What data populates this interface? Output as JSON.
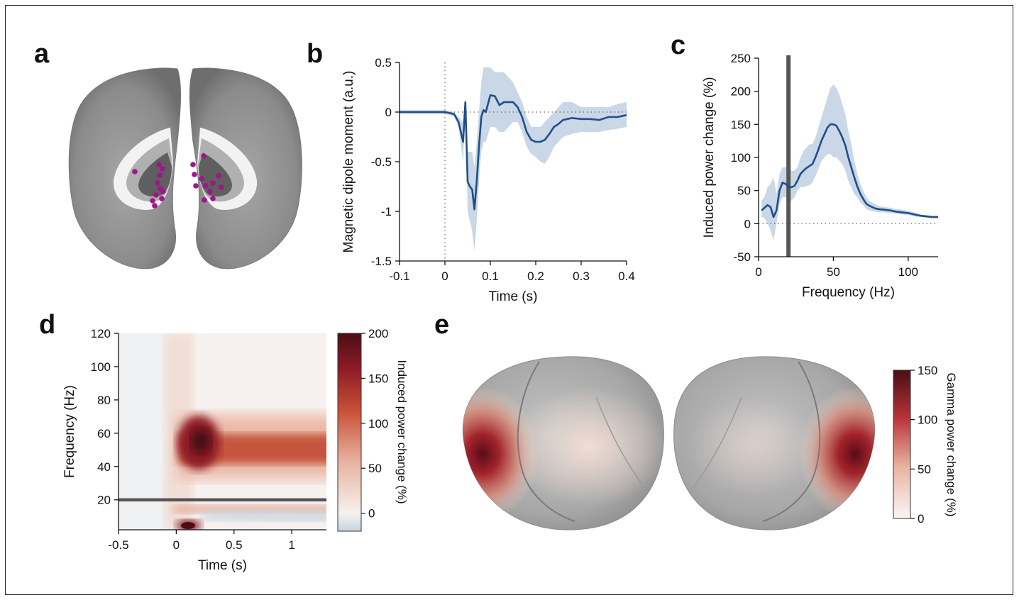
{
  "panels": {
    "a": {
      "label": "a"
    },
    "b": {
      "label": "b"
    },
    "c": {
      "label": "c"
    },
    "d": {
      "label": "d"
    },
    "e": {
      "label": "e"
    }
  },
  "colors": {
    "line": "#1f4e8a",
    "band": "#c9d7e6",
    "marker": "#555555",
    "spot": "#a0148c",
    "heat_low": "#c6d4df",
    "heat_zero": "#f6f1ee",
    "heat_high": "#4a0e14"
  },
  "chart_data": [
    {
      "panel": "b",
      "type": "line",
      "xlabel": "Time (s)",
      "ylabel": "Magnetic dipole moment (a.u.)",
      "xlim": [
        -0.1,
        0.4
      ],
      "ylim": [
        -1.5,
        0.5
      ],
      "xticks": [
        "-0.1",
        "0",
        "0.1",
        "0.2",
        "0.3",
        "0.4"
      ],
      "yticks": [
        "0.5",
        "0",
        "-0.5",
        "-1",
        "-1.5"
      ],
      "reference_lines": {
        "x": 0,
        "y": 0
      },
      "series": [
        {
          "x": [
            -0.1,
            -0.08,
            -0.06,
            -0.04,
            -0.02,
            0,
            0.02,
            0.03,
            0.04,
            0.045,
            0.05,
            0.055,
            0.06,
            0.065,
            0.07,
            0.075,
            0.08,
            0.085,
            0.09,
            0.1,
            0.11,
            0.12,
            0.13,
            0.14,
            0.15,
            0.16,
            0.17,
            0.18,
            0.19,
            0.2,
            0.21,
            0.22,
            0.23,
            0.24,
            0.25,
            0.26,
            0.28,
            0.3,
            0.32,
            0.34,
            0.36,
            0.38,
            0.4
          ],
          "y": [
            0.0,
            0.0,
            0.0,
            0.0,
            0.0,
            0.0,
            -0.02,
            -0.1,
            -0.3,
            0.1,
            -0.7,
            -0.75,
            -0.78,
            -0.98,
            -0.7,
            -0.35,
            -0.05,
            0.02,
            0.0,
            0.17,
            0.16,
            0.07,
            0.1,
            0.1,
            0.1,
            0.05,
            -0.05,
            -0.2,
            -0.28,
            -0.3,
            -0.3,
            -0.28,
            -0.22,
            -0.15,
            -0.12,
            -0.08,
            -0.06,
            -0.07,
            -0.07,
            -0.08,
            -0.05,
            -0.05,
            -0.03
          ],
          "upper": [
            0.02,
            0.02,
            0.02,
            0.02,
            0.02,
            0.02,
            0.0,
            -0.05,
            -0.1,
            0.15,
            -0.4,
            -0.4,
            -0.4,
            -0.55,
            -0.3,
            0.0,
            0.3,
            0.45,
            0.45,
            0.45,
            0.4,
            0.4,
            0.4,
            0.35,
            0.3,
            0.2,
            0.1,
            -0.05,
            -0.15,
            -0.15,
            -0.15,
            -0.1,
            -0.05,
            0.0,
            0.05,
            0.1,
            0.1,
            0.05,
            0.05,
            0.05,
            0.05,
            0.08,
            0.1
          ],
          "lower": [
            -0.02,
            -0.02,
            -0.02,
            -0.02,
            -0.02,
            -0.02,
            -0.04,
            -0.15,
            -0.5,
            0.05,
            -1.0,
            -1.1,
            -1.2,
            -1.4,
            -1.1,
            -0.7,
            -0.4,
            -0.3,
            -0.3,
            -0.15,
            -0.15,
            -0.2,
            -0.2,
            -0.15,
            -0.1,
            -0.1,
            -0.2,
            -0.35,
            -0.42,
            -0.45,
            -0.5,
            -0.52,
            -0.45,
            -0.35,
            -0.3,
            -0.25,
            -0.22,
            -0.2,
            -0.2,
            -0.2,
            -0.18,
            -0.17,
            -0.15
          ]
        }
      ]
    },
    {
      "panel": "c",
      "type": "line",
      "xlabel": "Frequency (Hz)",
      "ylabel": "Induced power change (%)",
      "xlim": [
        0,
        120
      ],
      "ylim": [
        -50,
        250
      ],
      "xticks": [
        "0",
        "50",
        "100"
      ],
      "yticks": [
        "250",
        "200",
        "150",
        "100",
        "50",
        "0",
        "-50"
      ],
      "reference_lines": {
        "y": 0
      },
      "marker_x": 20,
      "series": [
        {
          "x": [
            2,
            4,
            6,
            8,
            10,
            12,
            14,
            16,
            18,
            20,
            22,
            24,
            26,
            28,
            30,
            32,
            34,
            36,
            38,
            40,
            42,
            44,
            46,
            48,
            50,
            52,
            54,
            56,
            58,
            60,
            62,
            64,
            66,
            68,
            70,
            72,
            74,
            76,
            78,
            80,
            84,
            88,
            92,
            96,
            100,
            104,
            108,
            112,
            116,
            120
          ],
          "y": [
            20,
            24,
            28,
            25,
            10,
            20,
            50,
            62,
            60,
            56,
            55,
            57,
            65,
            75,
            80,
            84,
            87,
            90,
            100,
            112,
            125,
            135,
            145,
            150,
            150,
            148,
            140,
            130,
            118,
            100,
            85,
            70,
            56,
            45,
            37,
            30,
            27,
            25,
            23,
            22,
            21,
            20,
            18,
            17,
            16,
            14,
            12,
            11,
            10,
            10
          ],
          "upper": [
            35,
            40,
            55,
            60,
            70,
            45,
            75,
            85,
            85,
            85,
            80,
            80,
            85,
            100,
            110,
            115,
            120,
            120,
            130,
            145,
            160,
            175,
            190,
            205,
            210,
            205,
            195,
            180,
            165,
            140,
            120,
            95,
            75,
            60,
            50,
            40,
            35,
            32,
            29,
            27,
            25,
            24,
            22,
            21,
            19,
            17,
            14,
            13,
            12,
            12
          ],
          "lower": [
            10,
            8,
            0,
            -10,
            -25,
            0,
            30,
            40,
            40,
            35,
            35,
            40,
            50,
            55,
            55,
            57,
            58,
            62,
            72,
            82,
            95,
            100,
            105,
            105,
            100,
            100,
            95,
            90,
            80,
            65,
            55,
            45,
            40,
            32,
            28,
            22,
            20,
            19,
            18,
            17,
            17,
            16,
            15,
            14,
            13,
            11,
            10,
            9,
            8,
            8
          ]
        }
      ]
    },
    {
      "panel": "d",
      "type": "heatmap",
      "xlabel": "Time (s)",
      "ylabel": "Frequency (Hz)",
      "xlim": [
        -0.5,
        1.3
      ],
      "ylim": [
        2,
        120
      ],
      "xticks": [
        "-0.5",
        "0",
        "0.5",
        "1"
      ],
      "yticks": [
        "120",
        "100",
        "80",
        "60",
        "40",
        "20"
      ],
      "marker_y": 20,
      "colorbar": {
        "label": "Induced power change (%)",
        "range": [
          -20,
          200
        ],
        "ticks": [
          "200",
          "150",
          "100",
          "50",
          "0"
        ]
      },
      "features": [
        {
          "kind": "gamma_peak",
          "t": 0.2,
          "f": 57,
          "value": 200
        },
        {
          "kind": "gamma_sustained",
          "t_range": [
            0.05,
            1.3
          ],
          "f": 50,
          "value": 110
        },
        {
          "kind": "low_freq_peak",
          "t": 0.1,
          "f": 5,
          "value": 200
        },
        {
          "kind": "low_freq_suppression",
          "t_range": [
            0.25,
            1.3
          ],
          "f": 11,
          "value": -15
        }
      ]
    },
    {
      "panel": "e",
      "type": "heatmap",
      "colorbar": {
        "label": "Gamma power change (%)",
        "range": [
          0,
          150
        ],
        "ticks": [
          "150",
          "100",
          "50",
          "0"
        ]
      }
    }
  ]
}
